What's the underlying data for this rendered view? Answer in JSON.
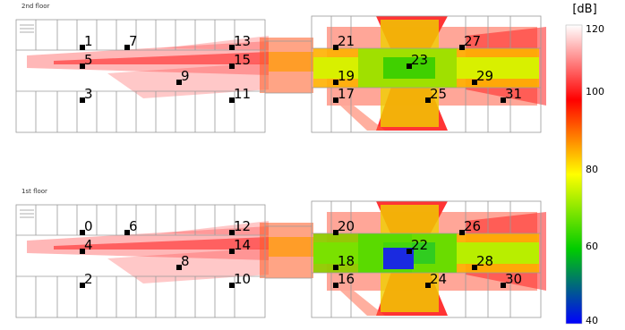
{
  "floors": [
    {
      "title": "2nd floor",
      "sensors": [
        {
          "id": "1",
          "label": "1"
        },
        {
          "id": "7",
          "label": "7"
        },
        {
          "id": "13",
          "label": "13"
        },
        {
          "id": "21",
          "label": "21"
        },
        {
          "id": "27",
          "label": "27"
        },
        {
          "id": "5",
          "label": "5"
        },
        {
          "id": "15",
          "label": "15"
        },
        {
          "id": "23",
          "label": "23"
        },
        {
          "id": "9",
          "label": "9"
        },
        {
          "id": "19",
          "label": "19"
        },
        {
          "id": "29",
          "label": "29"
        },
        {
          "id": "3",
          "label": "3"
        },
        {
          "id": "11",
          "label": "11"
        },
        {
          "id": "17",
          "label": "17"
        },
        {
          "id": "25",
          "label": "25"
        },
        {
          "id": "31",
          "label": "31"
        }
      ]
    },
    {
      "title": "1st floor",
      "sensors": [
        {
          "id": "0",
          "label": "0"
        },
        {
          "id": "6",
          "label": "6"
        },
        {
          "id": "12",
          "label": "12"
        },
        {
          "id": "20",
          "label": "20"
        },
        {
          "id": "26",
          "label": "26"
        },
        {
          "id": "4",
          "label": "4"
        },
        {
          "id": "14",
          "label": "14"
        },
        {
          "id": "22",
          "label": "22"
        },
        {
          "id": "8",
          "label": "8"
        },
        {
          "id": "18",
          "label": "18"
        },
        {
          "id": "28",
          "label": "28"
        },
        {
          "id": "2",
          "label": "2"
        },
        {
          "id": "10",
          "label": "10"
        },
        {
          "id": "16",
          "label": "16"
        },
        {
          "id": "24",
          "label": "24"
        },
        {
          "id": "30",
          "label": "30"
        }
      ]
    }
  ],
  "colorbar": {
    "unit": "[dB]",
    "min": 40,
    "max": 120,
    "ticks": [
      "120",
      "100",
      "80",
      "60",
      "40"
    ],
    "stops": [
      {
        "value": 120,
        "color": "#ffffff"
      },
      {
        "value": 100,
        "color": "#ff0000"
      },
      {
        "value": 80,
        "color": "#ffff00"
      },
      {
        "value": 60,
        "color": "#00cc00"
      },
      {
        "value": 40,
        "color": "#0000ff"
      }
    ]
  }
}
